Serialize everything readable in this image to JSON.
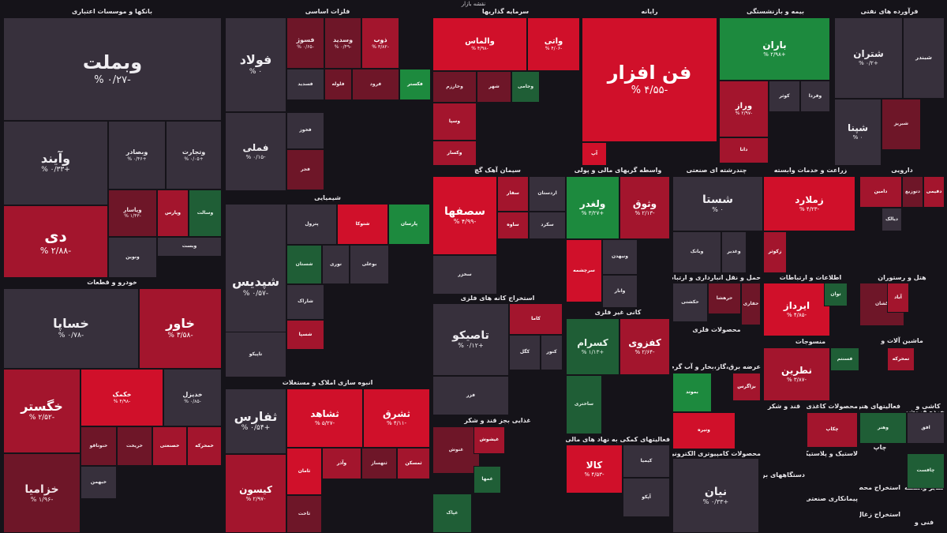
{
  "title": "نقشه بازار",
  "colors": {
    "deep_red": "#d0102a",
    "red": "#a3152d",
    "dark_red": "#6e1628",
    "flat": "#37303c",
    "green": "#1d8a3e",
    "dark_green": "#1f5e36",
    "background": "#151319"
  },
  "sectors": [
    {
      "name": "بانکها و موسسات اعتباری"
    },
    {
      "name": "فلزات اساسی"
    },
    {
      "name": "سرمایه گذاریها"
    },
    {
      "name": "رایانه"
    },
    {
      "name": "بیمه و بازنشستگی"
    },
    {
      "name": "فرآورده های نفتی"
    },
    {
      "name": "خودرو و قطعات"
    },
    {
      "name": "شیمیایی"
    },
    {
      "name": "سیمان آهک گچ"
    },
    {
      "name": "واسطه گریهای مالی و پولی"
    },
    {
      "name": "چندرشته ای صنعتی"
    },
    {
      "name": "زراعت و خدمات وابسته"
    },
    {
      "name": "دارویی"
    },
    {
      "name": "انبوه سازی املاک و مستغلات"
    },
    {
      "name": "استخراج کانه های فلزی"
    },
    {
      "name": "کانی غیر فلزی"
    },
    {
      "name": "حمل و نقل انبارداری و ارتباطات"
    },
    {
      "name": "اطلاعات و ارتباطات"
    },
    {
      "name": "هتل و رستوران"
    },
    {
      "name": "محصولات فلزی"
    },
    {
      "name": "منسوجات"
    },
    {
      "name": "ماشین آلات و"
    },
    {
      "name": "عرضه برق،گاز،بخار و آب گرم"
    },
    {
      "name": "غذایی بجز قند و شکر"
    },
    {
      "name": "فعالیتهای کمکی به نهاد های مالی و اسط"
    },
    {
      "name": "محصولات کامپیوتری الکترونیکی و"
    },
    {
      "name": "محصولات کاغذی"
    },
    {
      "name": "قند و شکر"
    },
    {
      "name": "فعالیتهای هنری"
    },
    {
      "name": "کاشی و"
    },
    {
      "name": "لاستیک و پلاستیک"
    },
    {
      "name": "دستگاههای برقی"
    },
    {
      "name": "پیمانکاری صنعتی"
    },
    {
      "name": "استخراج محصولات"
    },
    {
      "name": "سایر واسطه"
    },
    {
      "name": "استخراج زغال"
    },
    {
      "name": "فنی و"
    },
    {
      "name": "مخابرات"
    },
    {
      "name": "چاپ"
    },
    {
      "name": "خرده فروشی"
    }
  ],
  "tiles": [
    {
      "symbol": "وبملت",
      "change": "-۰/۲۷ %",
      "color": "flat"
    },
    {
      "symbol": "وآیند",
      "change": "+۰/۳۳ %",
      "color": "flat"
    },
    {
      "symbol": "وبصادر",
      "change": "+۰/۴۶ %",
      "color": "flat"
    },
    {
      "symbol": "وتجارت",
      "change": "+۰/۰۵ %",
      "color": "flat"
    },
    {
      "symbol": "دی",
      "change": "-۲/۸۸ %",
      "color": "red"
    },
    {
      "symbol": "وپاسار",
      "change": "-۱/۴۳ %",
      "color": "dark_red"
    },
    {
      "symbol": "وپارس",
      "change": "",
      "color": "red"
    },
    {
      "symbol": "وسالت",
      "change": "",
      "color": "dark_green"
    },
    {
      "symbol": "وبست",
      "change": "",
      "color": "flat"
    },
    {
      "symbol": "ونوین",
      "change": "",
      "color": "flat"
    },
    {
      "symbol": "فولاد",
      "change": "۰ %",
      "color": "flat"
    },
    {
      "symbol": "فملی",
      "change": "-۰/۱۵ %",
      "color": "flat"
    },
    {
      "symbol": "فسوژ",
      "change": "-۰/۶۵ %",
      "color": "dark_red"
    },
    {
      "symbol": "وسدید",
      "change": "-۰/۴۹ %",
      "color": "dark_red"
    },
    {
      "symbol": "ذوب",
      "change": "-۳/۸۲ %",
      "color": "red"
    },
    {
      "symbol": "فسدید",
      "change": "",
      "color": "flat"
    },
    {
      "symbol": "فلوله",
      "change": "",
      "color": "dark_red"
    },
    {
      "symbol": "فرود",
      "change": "",
      "color": "dark_red"
    },
    {
      "symbol": "فکستر",
      "change": "",
      "color": "green"
    },
    {
      "symbol": "فخوز",
      "change": "",
      "color": "flat"
    },
    {
      "symbol": "فجر",
      "change": "",
      "color": "dark_red"
    },
    {
      "symbol": "والماس",
      "change": "-۴/۹۸ %",
      "color": "deep_red"
    },
    {
      "symbol": "واتی",
      "change": "-۴/۰۶ %",
      "color": "deep_red"
    },
    {
      "symbol": "وخارزم",
      "change": "",
      "color": "dark_red"
    },
    {
      "symbol": "شهر",
      "change": "",
      "color": "dark_red"
    },
    {
      "symbol": "وجامی",
      "change": "",
      "color": "dark_green"
    },
    {
      "symbol": "وسپا",
      "change": "",
      "color": "red"
    },
    {
      "symbol": "وکسار",
      "change": "",
      "color": "red"
    },
    {
      "symbol": "فن افزار",
      "change": "-۴/۵۵ %",
      "color": "deep_red"
    },
    {
      "symbol": "آپ",
      "change": "",
      "color": "deep_red"
    },
    {
      "symbol": "باران",
      "change": "+۲/۹۸ %",
      "color": "green"
    },
    {
      "symbol": "وراز",
      "change": "-۲/۹۷ %",
      "color": "red"
    },
    {
      "symbol": "کوثر",
      "change": "",
      "color": "flat"
    },
    {
      "symbol": "وفردا",
      "change": "",
      "color": "flat"
    },
    {
      "symbol": "دانا",
      "change": "",
      "color": "red"
    },
    {
      "symbol": "شتران",
      "change": "+۰/۲ %",
      "color": "flat"
    },
    {
      "symbol": "شبندر",
      "change": "",
      "color": "flat"
    },
    {
      "symbol": "شپنا",
      "change": "۰ %",
      "color": "flat"
    },
    {
      "symbol": "شبریز",
      "change": "",
      "color": "dark_red"
    },
    {
      "symbol": "خساپا",
      "change": "-۰/۷۸ %",
      "color": "flat"
    },
    {
      "symbol": "خاور",
      "change": "-۳/۵۸ %",
      "color": "red"
    },
    {
      "symbol": "خگستر",
      "change": "-۲/۵۲ %",
      "color": "red"
    },
    {
      "symbol": "خکمک",
      "change": "-۴/۹۸ %",
      "color": "deep_red"
    },
    {
      "symbol": "خدیزل",
      "change": "-۰/۸۵ %",
      "color": "flat"
    },
    {
      "symbol": "خزامیا",
      "change": "-۱/۹۶ %",
      "color": "dark_red"
    },
    {
      "symbol": "خنوتاقو",
      "change": "",
      "color": "dark_red"
    },
    {
      "symbol": "خریخت",
      "change": "",
      "color": "dark_red"
    },
    {
      "symbol": "خصنعتی",
      "change": "",
      "color": "red"
    },
    {
      "symbol": "خمحرکه",
      "change": "",
      "color": "red"
    },
    {
      "symbol": "خبهمن",
      "change": "",
      "color": "flat"
    },
    {
      "symbol": "شپدیس",
      "change": "-۰/۵۷ %",
      "color": "flat"
    },
    {
      "symbol": "پترول",
      "change": "",
      "color": "flat"
    },
    {
      "symbol": "شتوکا",
      "change": "",
      "color": "deep_red"
    },
    {
      "symbol": "پارسان",
      "change": "",
      "color": "green"
    },
    {
      "symbol": "شستان",
      "change": "",
      "color": "dark_green"
    },
    {
      "symbol": "نوری",
      "change": "",
      "color": "flat"
    },
    {
      "symbol": "بوعلی",
      "change": "",
      "color": "flat"
    },
    {
      "symbol": "شاراک",
      "change": "",
      "color": "flat"
    },
    {
      "symbol": "تاپیکو",
      "change": "",
      "color": "flat"
    },
    {
      "symbol": "شسپا",
      "change": "",
      "color": "red"
    },
    {
      "symbol": "ثفارس",
      "change": "+۰/۵۴ %",
      "color": "flat"
    },
    {
      "symbol": "ثشاهد",
      "change": "-۵/۲۷ %",
      "color": "deep_red"
    },
    {
      "symbol": "ثشرق",
      "change": "-۴/۱۱ %",
      "color": "deep_red"
    },
    {
      "symbol": "کیسون",
      "change": "-۲/۹۷ %",
      "color": "red"
    },
    {
      "symbol": "ثامان",
      "change": "",
      "color": "deep_red"
    },
    {
      "symbol": "وآذر",
      "change": "",
      "color": "red"
    },
    {
      "symbol": "ثتهساز",
      "change": "",
      "color": "dark_red"
    },
    {
      "symbol": "ثمسکن",
      "change": "",
      "color": "red"
    },
    {
      "symbol": "ثاخت",
      "change": "",
      "color": "dark_red"
    },
    {
      "symbol": "سصفها",
      "change": "-۴/۹۹ %",
      "color": "deep_red"
    },
    {
      "symbol": "سفار",
      "change": "",
      "color": "red"
    },
    {
      "symbol": "اردستان",
      "change": "",
      "color": "flat"
    },
    {
      "symbol": "ساوه",
      "change": "",
      "color": "red"
    },
    {
      "symbol": "سکرد",
      "change": "",
      "color": "flat"
    },
    {
      "symbol": "سخزر",
      "change": "",
      "color": "flat"
    },
    {
      "symbol": "ولغدر",
      "change": "+۳/۲۷ %",
      "color": "green"
    },
    {
      "symbol": "وثوق",
      "change": "-۲/۱۳ %",
      "color": "red"
    },
    {
      "symbol": "سرچشمه",
      "change": "",
      "color": "deep_red"
    },
    {
      "symbol": "ونیهدن",
      "change": "",
      "color": "flat"
    },
    {
      "symbol": "وانار",
      "change": "",
      "color": "flat"
    },
    {
      "symbol": "شستا",
      "change": "۰ %",
      "color": "flat"
    },
    {
      "symbol": "وبانک",
      "change": "",
      "color": "flat"
    },
    {
      "symbol": "وغدیر",
      "change": "",
      "color": "flat"
    },
    {
      "symbol": "زملارد",
      "change": "-۴/۲۳ %",
      "color": "deep_red"
    },
    {
      "symbol": "زکوثر",
      "change": "",
      "color": "red"
    },
    {
      "symbol": "دامین",
      "change": "",
      "color": "red"
    },
    {
      "symbol": "دتوزیع",
      "change": "",
      "color": "dark_red"
    },
    {
      "symbol": "دفیمی",
      "change": "",
      "color": "red"
    },
    {
      "symbol": "دیالک",
      "change": "",
      "color": "flat"
    },
    {
      "symbol": "تاصیکو",
      "change": "+۰/۱۲ %",
      "color": "flat"
    },
    {
      "symbol": "کاما",
      "change": "",
      "color": "red"
    },
    {
      "symbol": "کگل",
      "change": "",
      "color": "flat"
    },
    {
      "symbol": "کنور",
      "change": "",
      "color": "flat"
    },
    {
      "symbol": "فزر",
      "change": "",
      "color": "flat"
    },
    {
      "symbol": "کسرام",
      "change": "+۱/۱۳ %",
      "color": "dark_green"
    },
    {
      "symbol": "کفزوی",
      "change": "-۲/۶۴ %",
      "color": "red"
    },
    {
      "symbol": "ساختری",
      "change": "",
      "color": "dark_green"
    },
    {
      "symbol": "حکشتی",
      "change": "",
      "color": "flat"
    },
    {
      "symbol": "حرهشا",
      "change": "",
      "color": "dark_red"
    },
    {
      "symbol": "حفاری",
      "change": "",
      "color": "dark_red"
    },
    {
      "symbol": "ایرداز",
      "change": "-۴/۸۵ %",
      "color": "deep_red"
    },
    {
      "symbol": "توان",
      "change": "",
      "color": "dark_green"
    },
    {
      "symbol": "کشان",
      "change": "",
      "color": "dark_red"
    },
    {
      "symbol": "آباد",
      "change": "",
      "color": "red"
    },
    {
      "symbol": "نطرین",
      "change": "-۳/۸۷ %",
      "color": "red"
    },
    {
      "symbol": "فسنتم",
      "change": "",
      "color": "dark_green"
    },
    {
      "symbol": "تمحرکه",
      "change": "",
      "color": "red"
    },
    {
      "symbol": "بموتد",
      "change": "",
      "color": "green"
    },
    {
      "symbol": "بزاگرس",
      "change": "",
      "color": "red"
    },
    {
      "symbol": "وتیره",
      "change": "",
      "color": "deep_red"
    },
    {
      "symbol": "غنوش",
      "change": "",
      "color": "dark_red"
    },
    {
      "symbol": "غیشوش",
      "change": "",
      "color": "red"
    },
    {
      "symbol": "غمها",
      "change": "",
      "color": "dark_green"
    },
    {
      "symbol": "غپاک",
      "change": "",
      "color": "dark_green"
    },
    {
      "symbol": "کالا",
      "change": "-۴/۵۳ %",
      "color": "deep_red"
    },
    {
      "symbol": "کیمیا",
      "change": "",
      "color": "flat"
    },
    {
      "symbol": "آپکو",
      "change": "",
      "color": "flat"
    },
    {
      "symbol": "نیان",
      "change": "+۰/۳۳ %",
      "color": "flat"
    },
    {
      "symbol": "چکاپ",
      "change": "",
      "color": "red"
    },
    {
      "symbol": "وهنر",
      "change": "",
      "color": "dark_green"
    },
    {
      "symbol": "افق",
      "change": "",
      "color": "flat"
    },
    {
      "symbol": "چافست",
      "change": "",
      "color": "dark_green"
    }
  ]
}
